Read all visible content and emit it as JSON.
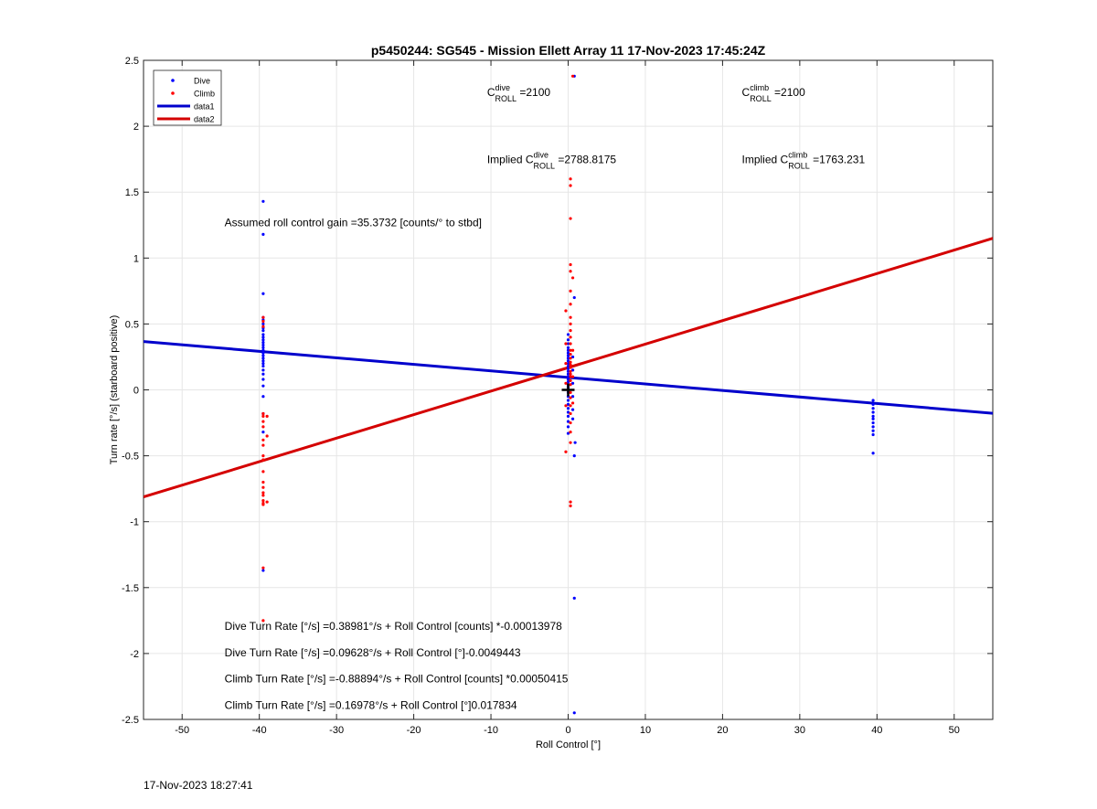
{
  "chart_data": {
    "type": "scatter",
    "title": "p5450244: SG545 - Mission Ellett Array 11 17-Nov-2023 17:45:24Z",
    "xlabel": "Roll Control [°]",
    "ylabel": "Turn rate [°/s] (starboard positive)",
    "xlim": [
      -55,
      55
    ],
    "ylim": [
      -2.5,
      2.5
    ],
    "xticks": [
      -50,
      -40,
      -30,
      -20,
      -10,
      0,
      10,
      20,
      30,
      40,
      50
    ],
    "yticks": [
      -2.5,
      -2,
      -1.5,
      -1,
      -0.5,
      0,
      0.5,
      1,
      1.5,
      2,
      2.5
    ],
    "grid": true,
    "legend_position": "top-left",
    "series": [
      {
        "name": "Dive",
        "kind": "points",
        "color": "#0000ff",
        "points": [
          [
            -39.5,
            1.43
          ],
          [
            -39.5,
            1.18
          ],
          [
            -39.5,
            0.73
          ],
          [
            -39.5,
            0.55
          ],
          [
            -39.5,
            0.53
          ],
          [
            -39.5,
            0.5
          ],
          [
            -39.5,
            0.47
          ],
          [
            -39.5,
            0.45
          ],
          [
            -39.5,
            0.42
          ],
          [
            -39.5,
            0.4
          ],
          [
            -39.5,
            0.38
          ],
          [
            -39.5,
            0.36
          ],
          [
            -39.5,
            0.34
          ],
          [
            -39.5,
            0.32
          ],
          [
            -39.5,
            0.3
          ],
          [
            -39.5,
            0.28
          ],
          [
            -39.5,
            0.26
          ],
          [
            -39.5,
            0.24
          ],
          [
            -39.5,
            0.22
          ],
          [
            -39.5,
            0.2
          ],
          [
            -39.5,
            0.18
          ],
          [
            -39.5,
            0.15
          ],
          [
            -39.5,
            0.12
          ],
          [
            -39.5,
            0.08
          ],
          [
            -39.5,
            0.03
          ],
          [
            -39.5,
            -0.05
          ],
          [
            -39.5,
            -0.18
          ],
          [
            -39.5,
            -0.32
          ],
          [
            -39.5,
            -1.37
          ],
          [
            0.0,
            0.42
          ],
          [
            0.0,
            0.38
          ],
          [
            0.0,
            0.35
          ],
          [
            0.0,
            0.32
          ],
          [
            0.0,
            0.3
          ],
          [
            0.0,
            0.28
          ],
          [
            0.0,
            0.26
          ],
          [
            0.0,
            0.24
          ],
          [
            0.0,
            0.22
          ],
          [
            0.0,
            0.2
          ],
          [
            0.0,
            0.18
          ],
          [
            0.0,
            0.16
          ],
          [
            0.0,
            0.14
          ],
          [
            0.0,
            0.12
          ],
          [
            0.0,
            0.1
          ],
          [
            0.0,
            0.08
          ],
          [
            0.0,
            0.06
          ],
          [
            0.0,
            0.04
          ],
          [
            0.0,
            0.02
          ],
          [
            0.0,
            -0.02
          ],
          [
            0.0,
            -0.05
          ],
          [
            0.0,
            -0.08
          ],
          [
            0.0,
            -0.11
          ],
          [
            0.0,
            -0.14
          ],
          [
            0.0,
            -0.17
          ],
          [
            0.0,
            -0.2
          ],
          [
            0.0,
            -0.24
          ],
          [
            0.0,
            -0.28
          ],
          [
            0.0,
            -0.33
          ],
          [
            0.6,
            0.25
          ],
          [
            0.6,
            0.15
          ],
          [
            0.6,
            0.05
          ],
          [
            0.6,
            -0.05
          ],
          [
            0.6,
            -0.15
          ],
          [
            0.6,
            -0.22
          ],
          [
            0.8,
            0.7
          ],
          [
            0.8,
            2.38
          ],
          [
            0.8,
            -0.5
          ],
          [
            0.8,
            -1.58
          ],
          [
            0.8,
            -2.45
          ],
          [
            0.9,
            -0.4
          ],
          [
            39.5,
            -0.08
          ],
          [
            39.5,
            -0.11
          ],
          [
            39.5,
            -0.14
          ],
          [
            39.5,
            -0.17
          ],
          [
            39.5,
            -0.2
          ],
          [
            39.5,
            -0.22
          ],
          [
            39.5,
            -0.25
          ],
          [
            39.5,
            -0.28
          ],
          [
            39.5,
            -0.31
          ],
          [
            39.5,
            -0.34
          ],
          [
            39.5,
            -0.48
          ]
        ]
      },
      {
        "name": "Climb",
        "kind": "points",
        "color": "#ff0000",
        "points": [
          [
            -39.5,
            0.55
          ],
          [
            -39.5,
            0.52
          ],
          [
            -39.5,
            0.48
          ],
          [
            -39.5,
            -0.18
          ],
          [
            -39.5,
            -0.2
          ],
          [
            -39.5,
            -0.24
          ],
          [
            -39.5,
            -0.28
          ],
          [
            -39.5,
            -0.38
          ],
          [
            -39.5,
            -0.42
          ],
          [
            -39.5,
            -0.5
          ],
          [
            -39.5,
            -0.53
          ],
          [
            -39.5,
            -0.62
          ],
          [
            -39.5,
            -0.7
          ],
          [
            -39.5,
            -0.74
          ],
          [
            -39.5,
            -0.78
          ],
          [
            -39.5,
            -0.8
          ],
          [
            -39.5,
            -0.84
          ],
          [
            -39.5,
            -0.86
          ],
          [
            -39.5,
            -0.87
          ],
          [
            -39.5,
            -1.35
          ],
          [
            -39.5,
            -1.75
          ],
          [
            -39.0,
            -0.2
          ],
          [
            -39.0,
            -0.35
          ],
          [
            -39.0,
            -0.85
          ],
          [
            0.3,
            1.6
          ],
          [
            0.3,
            1.55
          ],
          [
            0.3,
            1.3
          ],
          [
            0.3,
            0.95
          ],
          [
            0.3,
            0.9
          ],
          [
            0.3,
            0.75
          ],
          [
            0.3,
            0.65
          ],
          [
            0.3,
            0.55
          ],
          [
            0.3,
            0.5
          ],
          [
            0.3,
            0.45
          ],
          [
            0.3,
            0.4
          ],
          [
            0.3,
            0.35
          ],
          [
            0.3,
            0.3
          ],
          [
            0.3,
            0.27
          ],
          [
            0.3,
            0.24
          ],
          [
            0.3,
            0.21
          ],
          [
            0.3,
            0.19
          ],
          [
            0.3,
            0.17
          ],
          [
            0.3,
            0.14
          ],
          [
            0.3,
            0.12
          ],
          [
            0.3,
            0.1
          ],
          [
            0.3,
            0.07
          ],
          [
            0.3,
            0.04
          ],
          [
            0.3,
            -0.02
          ],
          [
            0.3,
            -0.06
          ],
          [
            0.3,
            -0.12
          ],
          [
            0.3,
            -0.18
          ],
          [
            0.3,
            -0.25
          ],
          [
            0.3,
            -0.32
          ],
          [
            0.3,
            -0.4
          ],
          [
            0.3,
            -0.85
          ],
          [
            0.3,
            -0.88
          ],
          [
            -0.3,
            0.6
          ],
          [
            -0.3,
            0.35
          ],
          [
            -0.3,
            0.2
          ],
          [
            -0.3,
            0.05
          ],
          [
            -0.3,
            -0.12
          ],
          [
            -0.3,
            -0.47
          ],
          [
            0.6,
            2.38
          ],
          [
            0.6,
            0.85
          ],
          [
            0.6,
            0.3
          ],
          [
            0.6,
            0.1
          ],
          [
            0.6,
            -0.1
          ]
        ]
      },
      {
        "name": "data1",
        "kind": "line",
        "color": "#0000cc",
        "x": [
          -55,
          55
        ],
        "y": [
          0.36669,
          -0.17774
        ]
      },
      {
        "name": "data2",
        "kind": "line",
        "color": "#d40000",
        "x": [
          -55,
          55
        ],
        "y": [
          -0.81209,
          1.14965
        ]
      }
    ],
    "marker": {
      "x": 0,
      "y": 0,
      "color": "#000000"
    },
    "annotations": [
      {
        "sym": "C",
        "sup": "dive",
        "sub": "ROLL",
        "tail": " =2100",
        "x": -10.5,
        "y": 2.23
      },
      {
        "sym": "C",
        "sup": "climb",
        "sub": "ROLL",
        "tail": " =2100",
        "x": 22.5,
        "y": 2.23
      },
      {
        "pre": "Implied ",
        "sym": "C",
        "sup": "dive",
        "sub": "ROLL",
        "tail": " =2788.8175",
        "x": -10.5,
        "y": 1.72
      },
      {
        "pre": "Implied ",
        "sym": "C",
        "sup": "climb",
        "sub": "ROLL",
        "tail": " =1763.231",
        "x": 22.5,
        "y": 1.72
      },
      {
        "text": "Assumed roll control gain =35.3732 [counts/° to stbd]",
        "x": -44.5,
        "y": 1.24
      },
      {
        "text": "Dive Turn Rate [°/s] =0.38981°/s + Roll Control [counts] *-0.00013978",
        "x": -44.5,
        "y": -1.82
      },
      {
        "text": "Dive Turn Rate [°/s] =0.09628°/s + Roll Control [°]-0.0049443",
        "x": -44.5,
        "y": -2.02
      },
      {
        "text": "Climb Turn Rate [°/s] =-0.88894°/s + Roll Control [counts] *0.00050415",
        "x": -44.5,
        "y": -2.22
      },
      {
        "text": "Climb Turn Rate [°/s] =0.16978°/s + Roll Control [°]0.017834",
        "x": -44.5,
        "y": -2.42
      }
    ]
  },
  "footer": {
    "timestamp": "17-Nov-2023 18:27:41"
  }
}
